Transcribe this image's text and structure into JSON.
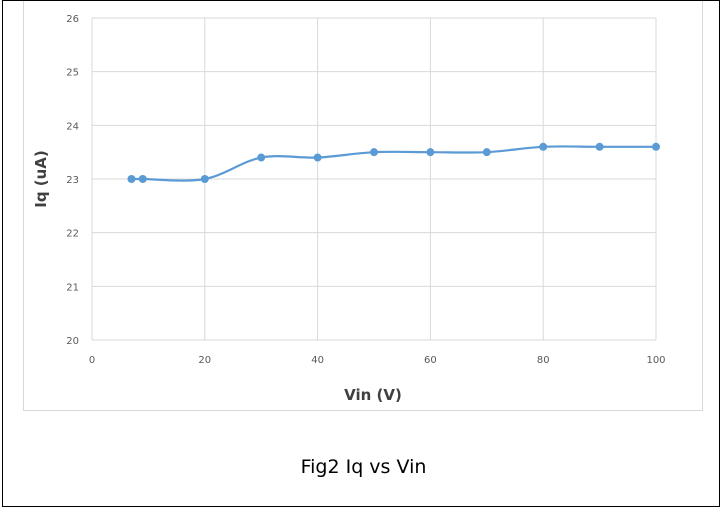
{
  "caption": "Fig2 Iq vs Vin",
  "chart_data": {
    "type": "line",
    "title": "",
    "xlabel": "Vin (V)",
    "ylabel": "Iq (uA)",
    "xlim": [
      0,
      100
    ],
    "ylim": [
      20,
      26
    ],
    "xticks": [
      0,
      20,
      40,
      60,
      80,
      100
    ],
    "yticks": [
      20,
      21,
      22,
      23,
      24,
      25,
      26
    ],
    "grid": true,
    "smooth": true,
    "line_color": "#5b9bd5",
    "series": [
      {
        "x": [
          7,
          9,
          20,
          30,
          40,
          50,
          60,
          70,
          80,
          90,
          100
        ],
        "y": [
          23.0,
          23.0,
          23.0,
          23.4,
          23.4,
          23.5,
          23.5,
          23.5,
          23.6,
          23.6,
          23.6
        ]
      }
    ]
  }
}
